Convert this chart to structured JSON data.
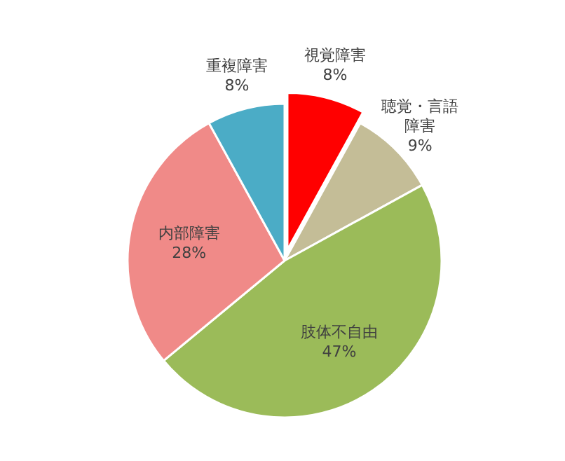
{
  "chart_data": {
    "type": "pie",
    "categories": [
      "視覚障害",
      "聴覚・言語障害",
      "肢体不自由",
      "内部障害",
      "重複障害"
    ],
    "values": [
      8,
      9,
      47,
      28,
      8
    ],
    "colors": [
      "#ff0000",
      "#c4bd97",
      "#9bbb59",
      "#f08a88",
      "#4bacc6"
    ],
    "value_labels": [
      "8%",
      "9%",
      "47%",
      "28%",
      "8%"
    ]
  }
}
